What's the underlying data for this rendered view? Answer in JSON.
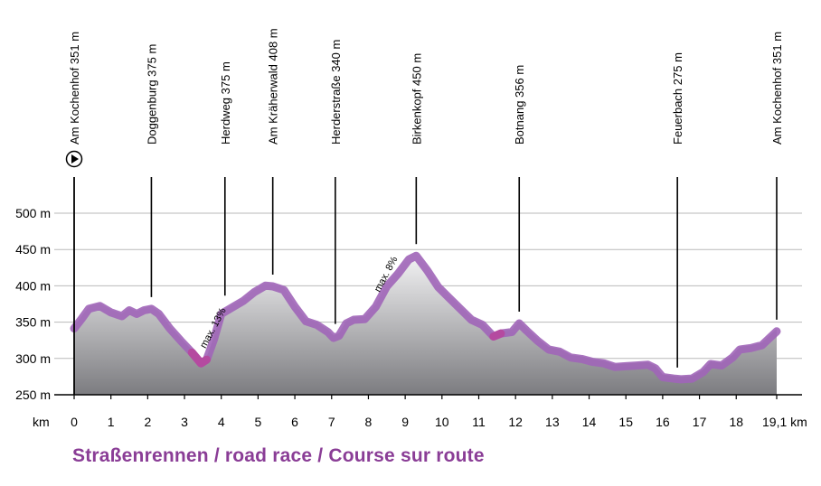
{
  "chart_data": {
    "type": "area",
    "title": "Straßenrennen / road race / Course sur route",
    "x_unit_label": "km",
    "x_end_label": "19,1 km",
    "xlim": [
      0,
      19.1
    ],
    "ylim": [
      250,
      550
    ],
    "x_ticks": [
      "0",
      "1",
      "2",
      "3",
      "4",
      "5",
      "6",
      "7",
      "8",
      "9",
      "10",
      "11",
      "12",
      "13",
      "14",
      "15",
      "16",
      "17",
      "18"
    ],
    "y_ticks": [
      {
        "value": 250,
        "label": "250 m"
      },
      {
        "value": 300,
        "label": "300 m"
      },
      {
        "value": 350,
        "label": "350 m"
      },
      {
        "value": 400,
        "label": "400 m"
      },
      {
        "value": 450,
        "label": "450 m"
      },
      {
        "value": 500,
        "label": "500 m"
      }
    ],
    "grid": true,
    "start_marker": "play-icon",
    "colors": {
      "route_band": "#a065b8",
      "route_band_steep": "#b54aa0",
      "fill_top": "#f4f4f5",
      "fill_bottom": "#7c7c80",
      "title": "#8a3d96"
    },
    "profile": {
      "x": [
        0,
        0.2,
        0.4,
        0.7,
        1.0,
        1.3,
        1.5,
        1.7,
        1.9,
        2.1,
        2.3,
        2.6,
        2.9,
        3.2,
        3.45,
        3.6,
        3.8,
        4.0,
        4.3,
        4.6,
        4.9,
        5.2,
        5.4,
        5.7,
        6.0,
        6.3,
        6.6,
        6.9,
        7.05,
        7.2,
        7.4,
        7.6,
        7.9,
        8.2,
        8.5,
        8.8,
        9.1,
        9.3,
        9.6,
        9.9,
        10.2,
        10.5,
        10.8,
        11.1,
        11.4,
        11.6,
        11.9,
        12.1,
        12.3,
        12.6,
        12.9,
        13.2,
        13.5,
        13.8,
        14.1,
        14.4,
        14.7,
        15.0,
        15.3,
        15.6,
        15.8,
        16.0,
        16.3,
        16.5,
        16.8,
        17.1,
        17.3,
        17.6,
        17.9,
        18.1,
        18.4,
        18.7,
        19.1
      ],
      "elevation": [
        345,
        358,
        372,
        376,
        367,
        362,
        370,
        365,
        370,
        372,
        365,
        345,
        328,
        312,
        297,
        302,
        330,
        365,
        374,
        383,
        395,
        404,
        403,
        398,
        375,
        355,
        350,
        340,
        332,
        335,
        352,
        357,
        358,
        375,
        403,
        420,
        440,
        445,
        425,
        402,
        387,
        372,
        357,
        350,
        334,
        338,
        340,
        352,
        342,
        328,
        316,
        313,
        305,
        303,
        299,
        297,
        292,
        293,
        294,
        295,
        290,
        278,
        276,
        275,
        276,
        285,
        296,
        294,
        305,
        316,
        318,
        322,
        341
      ]
    },
    "waypoints": [
      {
        "km": 0,
        "label": "Am Kochenhof 351 m"
      },
      {
        "km": 2.1,
        "label": "Doggenburg 375 m"
      },
      {
        "km": 4.1,
        "label": "Herdweg 375 m"
      },
      {
        "km": 5.4,
        "label": "Am Kräherwald 408 m"
      },
      {
        "km": 7.1,
        "label": "Herderstraße 340 m"
      },
      {
        "km": 9.3,
        "label": "Birkenkopf 450 m"
      },
      {
        "km": 12.1,
        "label": "Botnang 356 m"
      },
      {
        "km": 16.4,
        "label": "Feuerbach 275 m"
      },
      {
        "km": 19.1,
        "label": "Am Kochenhof 351 m"
      }
    ],
    "annotations": [
      {
        "km": 3.85,
        "elevation": 340,
        "text": "max. 13%"
      },
      {
        "km": 8.55,
        "elevation": 414,
        "text": "max. 8%"
      }
    ]
  }
}
